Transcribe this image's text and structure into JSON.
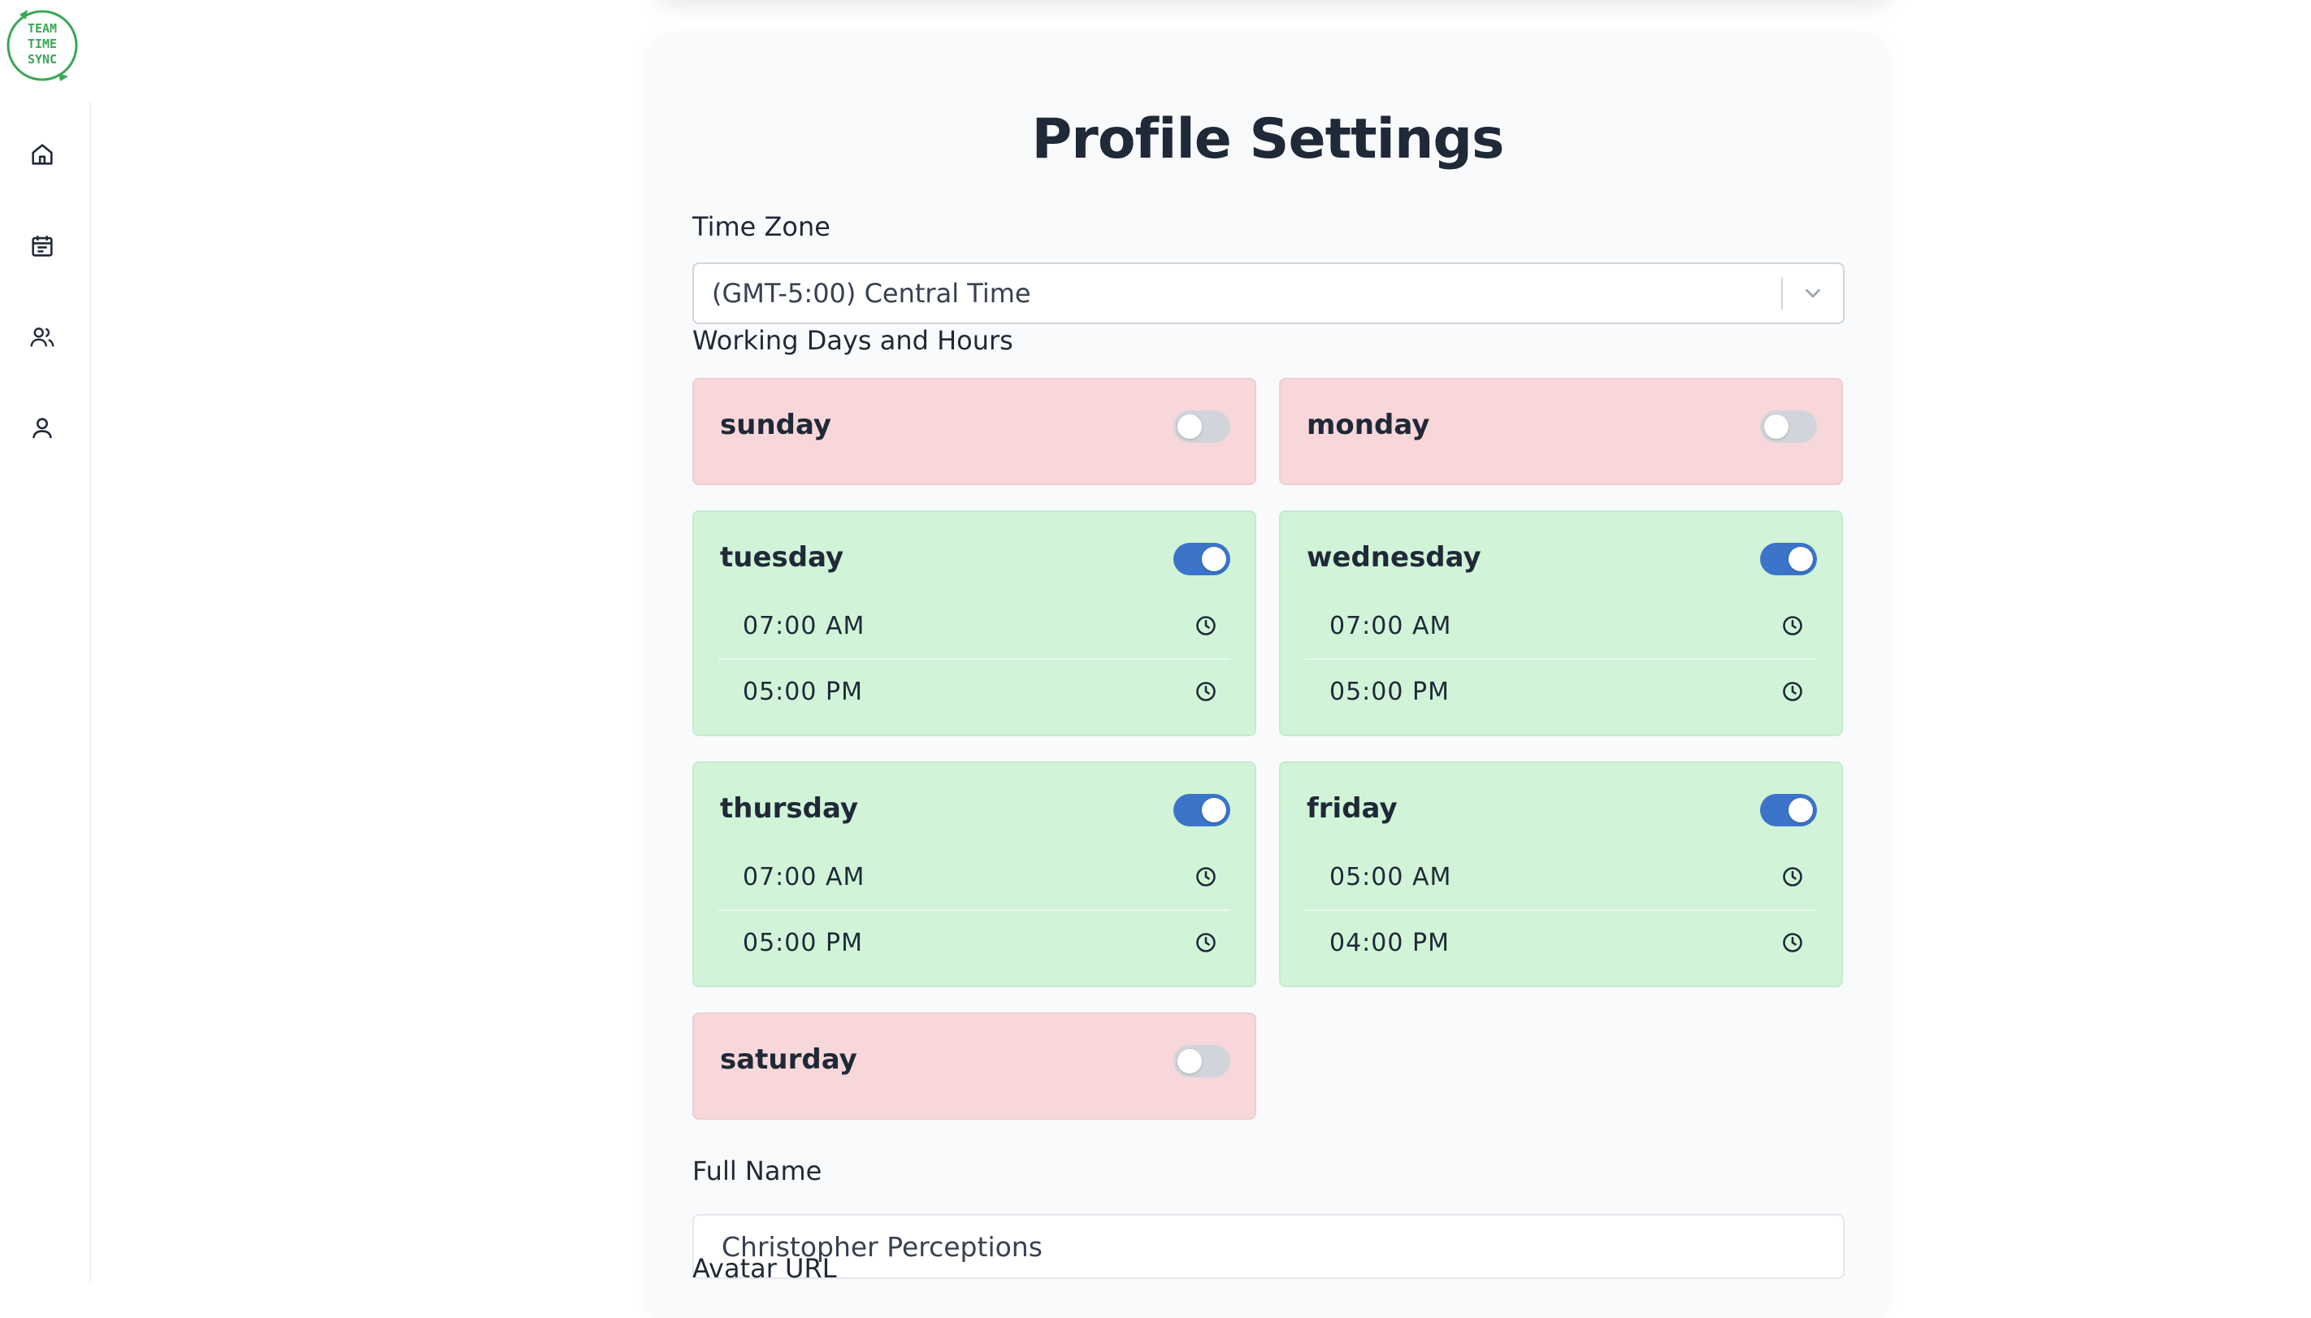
{
  "logo": {
    "line1": "TEAM",
    "line2": "TIME",
    "line3": "SYNC",
    "color": "#3aa757"
  },
  "nav": [
    {
      "icon": "home-icon"
    },
    {
      "icon": "calendar-icon"
    },
    {
      "icon": "team-icon"
    },
    {
      "icon": "user-icon"
    }
  ],
  "page": {
    "title": "Profile Settings"
  },
  "timezone": {
    "label": "Time Zone",
    "value": "(GMT-5:00) Central Time"
  },
  "working": {
    "label": "Working Days and Hours",
    "days": [
      {
        "name": "sunday",
        "enabled": false
      },
      {
        "name": "monday",
        "enabled": false
      },
      {
        "name": "tuesday",
        "enabled": true,
        "start": "07:00 AM",
        "end": "05:00 PM"
      },
      {
        "name": "wednesday",
        "enabled": true,
        "start": "07:00 AM",
        "end": "05:00 PM"
      },
      {
        "name": "thursday",
        "enabled": true,
        "start": "07:00 AM",
        "end": "05:00 PM"
      },
      {
        "name": "friday",
        "enabled": true,
        "start": "05:00 AM",
        "end": "04:00 PM"
      },
      {
        "name": "saturday",
        "enabled": false
      }
    ]
  },
  "full_name": {
    "label": "Full Name",
    "value": "Christopher Perceptions"
  },
  "avatar_url": {
    "label": "Avatar URL"
  },
  "colors": {
    "enabled_bg": "#d1f4d8",
    "disabled_bg": "#f8d7da",
    "toggle_on": "#3b74c9",
    "toggle_off": "#d1d5db"
  }
}
